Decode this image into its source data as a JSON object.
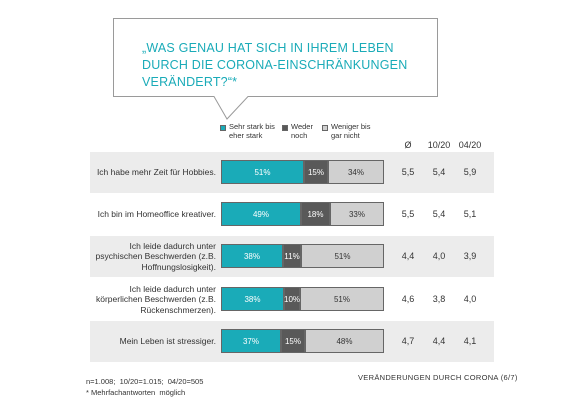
{
  "question": "„WAS GENAU HAT SICH IN IHREM LEBEN DURCH DIE CORONA-EINSCHRÄNKUNGEN VERÄNDERT?“*",
  "chart_data": {
    "type": "bar",
    "orientation": "horizontal",
    "stacked": true,
    "legend": [
      {
        "label": "Sehr stark bis eher stark",
        "color": "#1aabb8"
      },
      {
        "label": "Weder noch",
        "color": "#595959"
      },
      {
        "label": "Weniger bis gar nicht",
        "color": "#d0d0d0"
      }
    ],
    "columns": [
      "Ø",
      "10/20",
      "04/20"
    ],
    "rows": [
      {
        "label": "Ich habe mehr Zeit für Hobbies.",
        "values": [
          51,
          15,
          34
        ],
        "labels": [
          "51%",
          "15%",
          "34%"
        ],
        "stats": [
          "5,5",
          "5,4",
          "5,9"
        ]
      },
      {
        "label": "Ich bin im Homeoffice kreativer.",
        "values": [
          49,
          18,
          33
        ],
        "labels": [
          "49%",
          "18%",
          "33%"
        ],
        "stats": [
          "5,5",
          "5,4",
          "5,1"
        ]
      },
      {
        "label": "Ich leide dadurch unter psychischen Beschwerden (z.B. Hoffnungslosigkeit).",
        "values": [
          38,
          11,
          51
        ],
        "labels": [
          "38%",
          "11%",
          "51%"
        ],
        "stats": [
          "4,4",
          "4,0",
          "3,9"
        ]
      },
      {
        "label": "Ich leide dadurch unter körperlichen Beschwerden (z.B. Rückenschmerzen).",
        "values": [
          38,
          10,
          51
        ],
        "labels": [
          "38%",
          "10%",
          "51%"
        ],
        "stats": [
          "4,6",
          "3,8",
          "4,0"
        ]
      },
      {
        "label": "Mein Leben ist stressiger.",
        "values": [
          37,
          15,
          48
        ],
        "labels": [
          "37%",
          "15%",
          "48%"
        ],
        "stats": [
          "4,7",
          "4,4",
          "4,1"
        ]
      }
    ]
  },
  "footnote_sample": "n=1.008;  10/20=1.015;  04/20=505",
  "footnote_multi": "* Mehrfachantworten  möglich",
  "footer_right": "VERÄNDERUNGEN  DURCH CORONA (6/7)"
}
